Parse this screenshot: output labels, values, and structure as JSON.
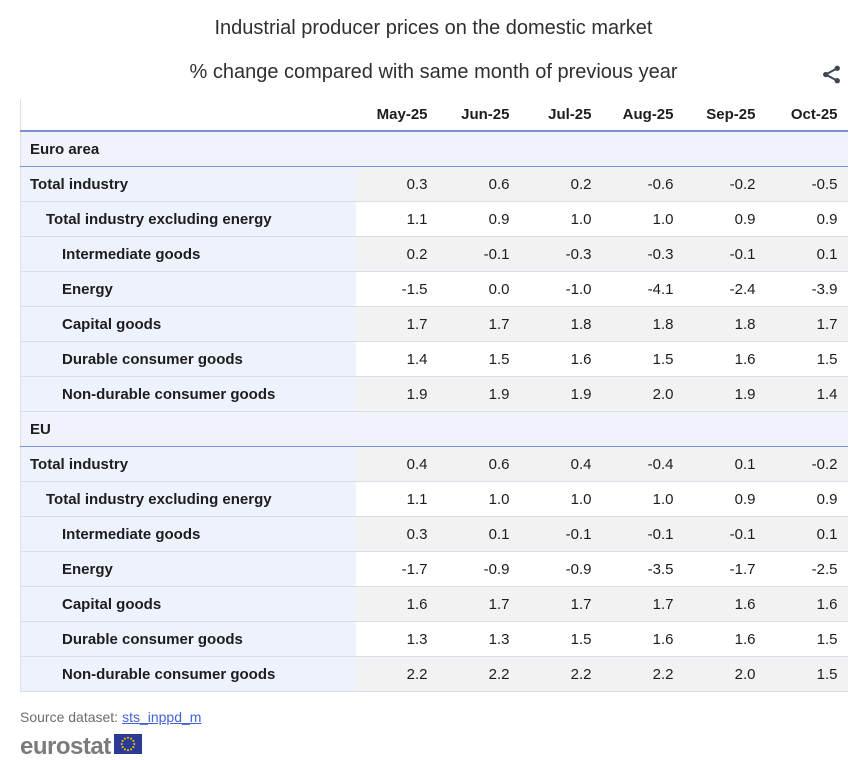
{
  "header": {
    "title": "Industrial producer prices on the domestic market",
    "subtitle": "% change compared with same month of previous year"
  },
  "table": {
    "columns": [
      "May-25",
      "Jun-25",
      "Jul-25",
      "Aug-25",
      "Sep-25",
      "Oct-25"
    ],
    "sections": [
      {
        "label": "Euro area",
        "rows": [
          {
            "label": "Total industry",
            "indent": 0,
            "display": [
              "0.3",
              "0.6",
              "0.2",
              "-0.6",
              "-0.2",
              "-0.5"
            ]
          },
          {
            "label": "Total industry excluding energy",
            "indent": 1,
            "display": [
              "1.1",
              "0.9",
              "1.0",
              "1.0",
              "0.9",
              "0.9"
            ]
          },
          {
            "label": "Intermediate goods",
            "indent": 2,
            "display": [
              "0.2",
              "-0.1",
              "-0.3",
              "-0.3",
              "-0.1",
              "0.1"
            ]
          },
          {
            "label": "Energy",
            "indent": 2,
            "display": [
              "-1.5",
              "0.0",
              "-1.0",
              "-4.1",
              "-2.4",
              "-3.9"
            ]
          },
          {
            "label": "Capital goods",
            "indent": 2,
            "display": [
              "1.7",
              "1.7",
              "1.8",
              "1.8",
              "1.8",
              "1.7"
            ]
          },
          {
            "label": "Durable consumer goods",
            "indent": 2,
            "display": [
              "1.4",
              "1.5",
              "1.6",
              "1.5",
              "1.6",
              "1.5"
            ]
          },
          {
            "label": "Non-durable consumer goods",
            "indent": 2,
            "display": [
              "1.9",
              "1.9",
              "1.9",
              "2.0",
              "1.9",
              "1.4"
            ]
          }
        ]
      },
      {
        "label": "EU",
        "rows": [
          {
            "label": "Total industry",
            "indent": 0,
            "display": [
              "0.4",
              "0.6",
              "0.4",
              "-0.4",
              "0.1",
              "-0.2"
            ]
          },
          {
            "label": "Total industry excluding energy",
            "indent": 1,
            "display": [
              "1.1",
              "1.0",
              "1.0",
              "1.0",
              "0.9",
              "0.9"
            ]
          },
          {
            "label": "Intermediate goods",
            "indent": 2,
            "display": [
              "0.3",
              "0.1",
              "-0.1",
              "-0.1",
              "-0.1",
              "0.1"
            ]
          },
          {
            "label": "Energy",
            "indent": 2,
            "display": [
              "-1.7",
              "-0.9",
              "-0.9",
              "-3.5",
              "-1.7",
              "-2.5"
            ]
          },
          {
            "label": "Capital goods",
            "indent": 2,
            "display": [
              "1.6",
              "1.7",
              "1.7",
              "1.7",
              "1.6",
              "1.6"
            ]
          },
          {
            "label": "Durable consumer goods",
            "indent": 2,
            "display": [
              "1.3",
              "1.3",
              "1.5",
              "1.6",
              "1.6",
              "1.5"
            ]
          },
          {
            "label": "Non-durable consumer goods",
            "indent": 2,
            "display": [
              "2.2",
              "2.2",
              "2.2",
              "2.2",
              "2.0",
              "1.5"
            ]
          }
        ]
      }
    ]
  },
  "chart_data": {
    "type": "table",
    "title": "Industrial producer prices on the domestic market",
    "subtitle": "% change compared with same month of previous year",
    "columns": [
      "May-25",
      "Jun-25",
      "Jul-25",
      "Aug-25",
      "Sep-25",
      "Oct-25"
    ],
    "sections": [
      {
        "name": "Euro area",
        "rows": [
          {
            "label": "Total industry",
            "values": [
              0.3,
              0.6,
              0.2,
              -0.6,
              -0.2,
              -0.5
            ]
          },
          {
            "label": "Total industry excluding energy",
            "values": [
              1.1,
              0.9,
              1.0,
              1.0,
              0.9,
              0.9
            ]
          },
          {
            "label": "Intermediate goods",
            "values": [
              0.2,
              -0.1,
              -0.3,
              -0.3,
              -0.1,
              0.1
            ]
          },
          {
            "label": "Energy",
            "values": [
              -1.5,
              0.0,
              -1.0,
              -4.1,
              -2.4,
              -3.9
            ]
          },
          {
            "label": "Capital goods",
            "values": [
              1.7,
              1.7,
              1.8,
              1.8,
              1.8,
              1.7
            ]
          },
          {
            "label": "Durable consumer goods",
            "values": [
              1.4,
              1.5,
              1.6,
              1.5,
              1.6,
              1.5
            ]
          },
          {
            "label": "Non-durable consumer goods",
            "values": [
              1.9,
              1.9,
              1.9,
              2.0,
              1.9,
              1.4
            ]
          }
        ]
      },
      {
        "name": "EU",
        "rows": [
          {
            "label": "Total industry",
            "values": [
              0.4,
              0.6,
              0.4,
              -0.4,
              0.1,
              -0.2
            ]
          },
          {
            "label": "Total industry excluding energy",
            "values": [
              1.1,
              1.0,
              1.0,
              1.0,
              0.9,
              0.9
            ]
          },
          {
            "label": "Intermediate goods",
            "values": [
              0.3,
              0.1,
              -0.1,
              -0.1,
              -0.1,
              0.1
            ]
          },
          {
            "label": "Energy",
            "values": [
              -1.7,
              -0.9,
              -0.9,
              -3.5,
              -1.7,
              -2.5
            ]
          },
          {
            "label": "Capital goods",
            "values": [
              1.6,
              1.7,
              1.7,
              1.7,
              1.6,
              1.6
            ]
          },
          {
            "label": "Durable consumer goods",
            "values": [
              1.3,
              1.3,
              1.5,
              1.6,
              1.6,
              1.5
            ]
          },
          {
            "label": "Non-durable consumer goods",
            "values": [
              2.2,
              2.2,
              2.2,
              2.2,
              2.0,
              1.5
            ]
          }
        ]
      }
    ]
  },
  "footer": {
    "source_label": "Source dataset:",
    "source_link": "sts_inppd_m",
    "logo_text": "eurostat"
  },
  "icons": {
    "share": "share-icon",
    "eu_flag": "eu-flag-icon"
  },
  "colors": {
    "accent_border": "#7c90d4",
    "row_border": "#d9dee9",
    "label_bg": "#eef2fc",
    "section_bg": "#f0f3fc",
    "stripe_bg": "#f1f2f1",
    "link": "#4263d7",
    "title_text": "#2f2f31",
    "table_text": "#1d1d1f",
    "muted_text": "#6d6d6d",
    "logo_gray": "#7b7b7b",
    "flag_blue": "#2b3a96",
    "flag_star": "#f3c500",
    "share_icon": "#3d4654"
  }
}
